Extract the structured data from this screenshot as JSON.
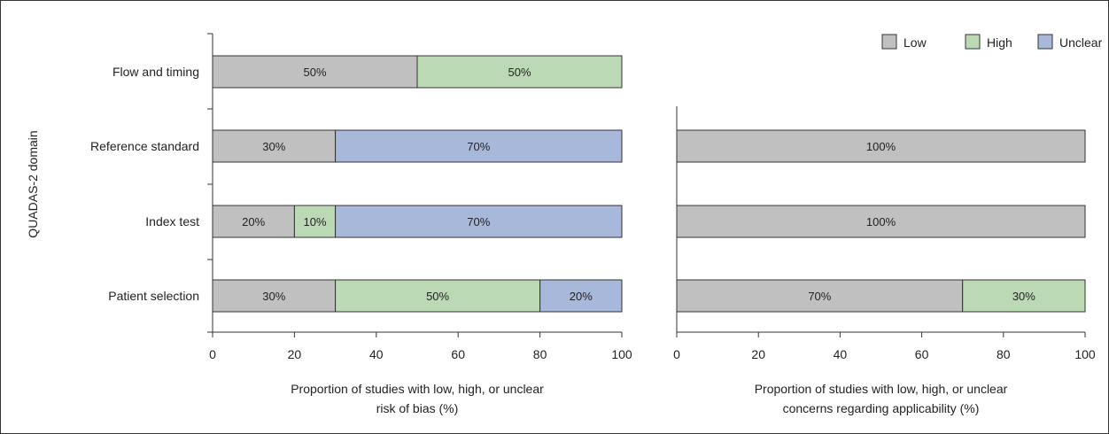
{
  "chart_data": {
    "type": "bar",
    "orientation": "horizontal",
    "stacked": true,
    "ylabel": "QUADAS-2 domain",
    "colors": {
      "Low": "#c0c0c0",
      "High": "#bcd9b6",
      "Unclear": "#a8b8da"
    },
    "legend": {
      "placement": "top-right",
      "entries": [
        {
          "name": "Low",
          "color": "#c0c0c0"
        },
        {
          "name": "High",
          "color": "#bcd9b6"
        },
        {
          "name": "Unclear",
          "color": "#a8b8da"
        }
      ]
    },
    "panels": [
      {
        "xlabel_lines": [
          "Proportion of studies with low, high, or unclear",
          "risk of bias (%)"
        ],
        "xlim": [
          0,
          100
        ],
        "xticks": [
          0,
          20,
          40,
          60,
          80,
          100
        ],
        "rows": [
          {
            "category": "Flow and timing",
            "segments": [
              {
                "series": "Low",
                "value": 50,
                "label": "50%"
              },
              {
                "series": "High",
                "value": 50,
                "label": "50%"
              }
            ]
          },
          {
            "category": "Reference standard",
            "segments": [
              {
                "series": "Low",
                "value": 30,
                "label": "30%"
              },
              {
                "series": "Unclear",
                "value": 70,
                "label": "70%"
              }
            ]
          },
          {
            "category": "Index test",
            "segments": [
              {
                "series": "Low",
                "value": 20,
                "label": "20%"
              },
              {
                "series": "High",
                "value": 10,
                "label": "10%"
              },
              {
                "series": "Unclear",
                "value": 70,
                "label": "70%"
              }
            ]
          },
          {
            "category": "Patient selection",
            "segments": [
              {
                "series": "Low",
                "value": 30,
                "label": "30%"
              },
              {
                "series": "High",
                "value": 50,
                "label": "50%"
              },
              {
                "series": "Unclear",
                "value": 20,
                "label": "20%"
              }
            ]
          }
        ]
      },
      {
        "xlabel_lines": [
          "Proportion of studies with low, high, or unclear",
          "concerns regarding applicability (%)"
        ],
        "xlim": [
          0,
          100
        ],
        "xticks": [
          0,
          20,
          40,
          60,
          80,
          100
        ],
        "rows": [
          {
            "category": "Reference standard",
            "segments": [
              {
                "series": "Low",
                "value": 100,
                "label": "100%"
              }
            ]
          },
          {
            "category": "Index test",
            "segments": [
              {
                "series": "Low",
                "value": 100,
                "label": "100%"
              }
            ]
          },
          {
            "category": "Patient selection",
            "segments": [
              {
                "series": "Low",
                "value": 70,
                "label": "70%"
              },
              {
                "series": "High",
                "value": 30,
                "label": "30%"
              }
            ]
          }
        ]
      }
    ]
  }
}
